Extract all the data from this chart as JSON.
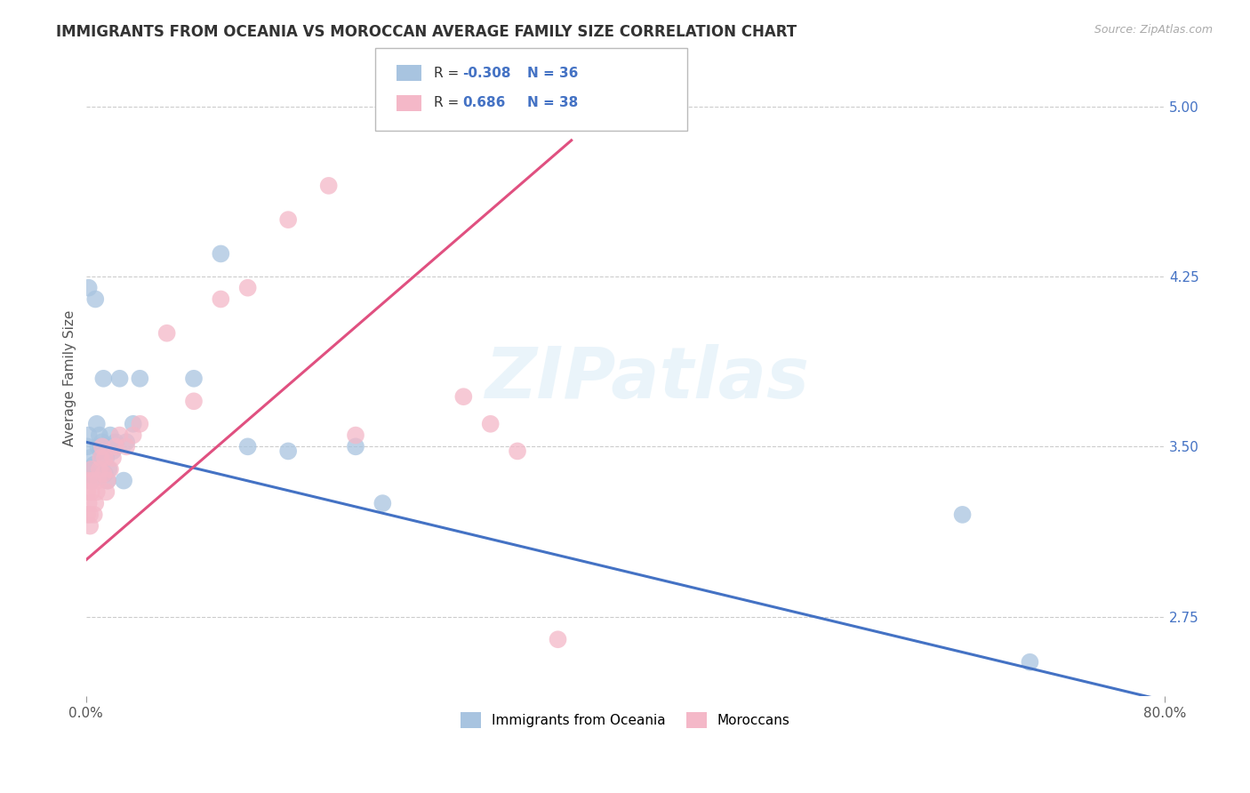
{
  "title": "IMMIGRANTS FROM OCEANIA VS MOROCCAN AVERAGE FAMILY SIZE CORRELATION CHART",
  "source": "Source: ZipAtlas.com",
  "ylabel": "Average Family Size",
  "watermark": "ZIPatlas",
  "xlim": [
    0.0,
    0.8
  ],
  "ylim": [
    2.4,
    5.2
  ],
  "yticks": [
    2.75,
    3.5,
    4.25,
    5.0
  ],
  "xtick_positions": [
    0.0,
    0.8
  ],
  "xtick_labels": [
    "0.0%",
    "80.0%"
  ],
  "legend_label1": "Immigrants from Oceania",
  "legend_label2": "Moroccans",
  "color_oceania": "#a8c4e0",
  "color_moroccan": "#f4b8c8",
  "line_color_oceania": "#4472c4",
  "line_color_moroccan": "#e05080",
  "oceania_x": [
    0.001,
    0.001,
    0.002,
    0.002,
    0.003,
    0.003,
    0.004,
    0.005,
    0.006,
    0.007,
    0.008,
    0.009,
    0.01,
    0.011,
    0.012,
    0.013,
    0.014,
    0.015,
    0.016,
    0.017,
    0.018,
    0.02,
    0.022,
    0.025,
    0.028,
    0.03,
    0.035,
    0.04,
    0.08,
    0.1,
    0.12,
    0.15,
    0.2,
    0.22,
    0.65,
    0.7
  ],
  "oceania_y": [
    3.5,
    3.4,
    3.55,
    4.2,
    3.45,
    3.38,
    3.35,
    3.4,
    3.42,
    4.15,
    3.6,
    3.5,
    3.55,
    3.48,
    3.52,
    3.8,
    3.38,
    3.45,
    3.35,
    3.4,
    3.55,
    3.48,
    3.52,
    3.8,
    3.35,
    3.52,
    3.6,
    3.8,
    3.8,
    4.35,
    3.5,
    3.48,
    3.5,
    3.25,
    3.2,
    2.55
  ],
  "moroccan_x": [
    0.001,
    0.001,
    0.002,
    0.002,
    0.003,
    0.003,
    0.004,
    0.004,
    0.005,
    0.006,
    0.007,
    0.008,
    0.009,
    0.01,
    0.011,
    0.012,
    0.013,
    0.014,
    0.015,
    0.016,
    0.018,
    0.02,
    0.022,
    0.025,
    0.03,
    0.035,
    0.04,
    0.06,
    0.08,
    0.1,
    0.12,
    0.15,
    0.18,
    0.2,
    0.28,
    0.3,
    0.32,
    0.35
  ],
  "moroccan_y": [
    3.2,
    3.3,
    3.25,
    3.35,
    3.2,
    3.15,
    3.3,
    3.4,
    3.35,
    3.2,
    3.25,
    3.3,
    3.35,
    3.4,
    3.45,
    3.5,
    3.38,
    3.45,
    3.3,
    3.35,
    3.4,
    3.45,
    3.5,
    3.55,
    3.5,
    3.55,
    3.6,
    4.0,
    3.7,
    4.15,
    4.2,
    4.5,
    4.65,
    3.55,
    3.72,
    3.6,
    3.48,
    2.65
  ],
  "oceania_line_x": [
    0.0,
    0.8
  ],
  "oceania_line_y": [
    3.52,
    2.38
  ],
  "moroccan_line_x": [
    0.0,
    0.36
  ],
  "moroccan_line_y": [
    3.0,
    4.85
  ],
  "title_fontsize": 12,
  "axis_label_fontsize": 11,
  "tick_fontsize": 11,
  "background_color": "#ffffff",
  "grid_color": "#cccccc",
  "right_tick_color": "#4472c4"
}
